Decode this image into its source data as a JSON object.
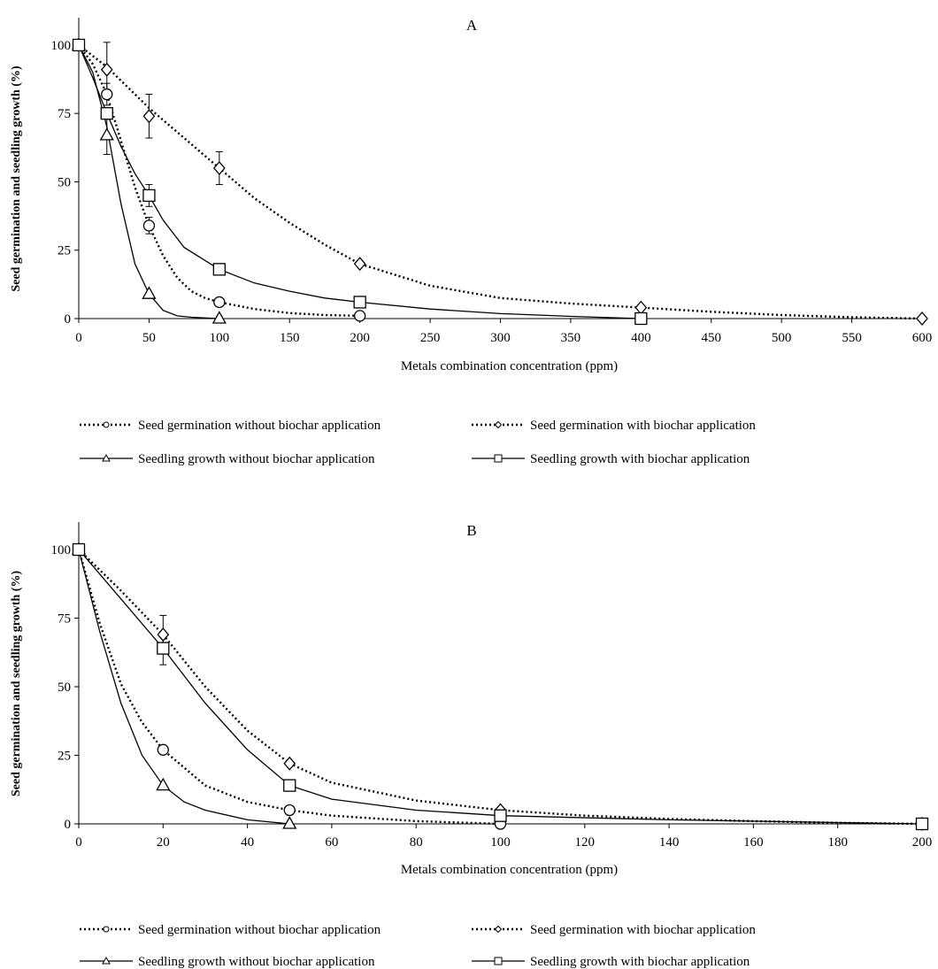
{
  "chart_data": [
    {
      "type": "line",
      "title": "A",
      "xlabel": "Metals combination concentration (ppm)",
      "ylabel": "Seed germination and seedling growth (%)",
      "xlim": [
        0,
        600
      ],
      "ylim": [
        0,
        110
      ],
      "xticks": [
        0,
        50,
        100,
        150,
        200,
        250,
        300,
        350,
        400,
        450,
        500,
        550,
        600
      ],
      "yticks": [
        0,
        25,
        50,
        75,
        100
      ],
      "grid": false,
      "legend_position": "below",
      "series": [
        {
          "name": "Seed germination without biochar application",
          "marker": "circle",
          "line": "dotted",
          "x": [
            0,
            20,
            50,
            100,
            200
          ],
          "y": [
            100,
            82,
            34,
            6,
            1
          ],
          "err": [
            0,
            4,
            3,
            0,
            0
          ],
          "curve_x": [
            0,
            10,
            20,
            30,
            40,
            50,
            60,
            70,
            80,
            90,
            100,
            125,
            150,
            175,
            200
          ],
          "curve_y": [
            100,
            93,
            82,
            65,
            48,
            34,
            23,
            15,
            10,
            7.5,
            6,
            3.5,
            2,
            1.3,
            1
          ]
        },
        {
          "name": "Seed germination with biochar application",
          "marker": "diamond",
          "line": "dotted",
          "x": [
            0,
            20,
            50,
            100,
            200,
            400,
            600
          ],
          "y": [
            100,
            91,
            74,
            55,
            20,
            4,
            0
          ],
          "err": [
            0,
            10,
            8,
            6,
            0,
            0,
            0
          ],
          "curve_x": [
            0,
            20,
            50,
            75,
            100,
            125,
            150,
            175,
            200,
            250,
            300,
            350,
            400,
            450,
            500,
            550,
            600
          ],
          "curve_y": [
            100,
            92,
            77,
            66,
            55,
            44,
            35,
            27,
            20,
            12,
            7.5,
            5.5,
            4,
            2.5,
            1.3,
            0.5,
            0
          ]
        },
        {
          "name": "Seedling growth without biochar application",
          "marker": "triangle",
          "line": "solid",
          "x": [
            0,
            20,
            50,
            100
          ],
          "y": [
            100,
            67,
            9,
            0
          ],
          "err": [
            0,
            7,
            0,
            0
          ],
          "curve_x": [
            0,
            10,
            20,
            30,
            40,
            50,
            60,
            70,
            80,
            100
          ],
          "curve_y": [
            100,
            90,
            70,
            42,
            20,
            9,
            3,
            1,
            0.5,
            0
          ]
        },
        {
          "name": "Seedling growth with biochar application",
          "marker": "square",
          "line": "solid",
          "x": [
            0,
            20,
            50,
            100,
            200,
            400
          ],
          "y": [
            100,
            75,
            45,
            18,
            6,
            0
          ],
          "err": [
            0,
            0,
            4,
            0,
            0,
            0
          ],
          "curve_x": [
            0,
            10,
            20,
            30,
            40,
            50,
            60,
            75,
            100,
            125,
            150,
            175,
            200,
            250,
            300,
            350,
            400
          ],
          "curve_y": [
            100,
            88,
            75,
            63,
            53,
            45,
            36,
            26,
            18,
            13,
            10,
            7.5,
            6,
            3.5,
            1.8,
            0.8,
            0
          ]
        }
      ]
    },
    {
      "type": "line",
      "title": "B",
      "xlabel": "Metals combination concentration (ppm)",
      "ylabel": "Seed germination and seedling growth (%)",
      "xlim": [
        0,
        200
      ],
      "ylim": [
        0,
        110
      ],
      "xticks": [
        0,
        20,
        40,
        60,
        80,
        100,
        120,
        140,
        160,
        180,
        200
      ],
      "yticks": [
        0,
        25,
        50,
        75,
        100
      ],
      "grid": false,
      "legend_position": "below",
      "series": [
        {
          "name": "Seed germination without biochar application",
          "marker": "circle",
          "line": "dotted",
          "x": [
            0,
            20,
            50,
            100
          ],
          "y": [
            100,
            27,
            5,
            0
          ],
          "err": [
            0,
            0,
            0,
            0
          ],
          "curve_x": [
            0,
            5,
            10,
            15,
            20,
            30,
            40,
            50,
            60,
            80,
            100
          ],
          "curve_y": [
            100,
            73,
            51,
            37,
            27,
            14,
            8,
            5,
            3,
            1,
            0
          ]
        },
        {
          "name": "Seed germination with biochar application",
          "marker": "diamond",
          "line": "dotted",
          "x": [
            0,
            20,
            50,
            100,
            200
          ],
          "y": [
            100,
            69,
            22,
            5,
            0
          ],
          "err": [
            0,
            7,
            0,
            0,
            0
          ],
          "curve_x": [
            0,
            10,
            20,
            30,
            40,
            50,
            60,
            80,
            100,
            120,
            140,
            160,
            180,
            200
          ],
          "curve_y": [
            100,
            85,
            69,
            50,
            34,
            22,
            15,
            8.5,
            5,
            3,
            1.8,
            1,
            0.4,
            0
          ]
        },
        {
          "name": "Seedling growth without biochar application",
          "marker": "triangle",
          "line": "solid",
          "x": [
            0,
            20,
            50
          ],
          "y": [
            100,
            14,
            0
          ],
          "err": [
            0,
            0,
            0
          ],
          "curve_x": [
            0,
            5,
            10,
            15,
            20,
            25,
            30,
            40,
            50
          ],
          "curve_y": [
            100,
            70,
            44,
            25,
            14,
            8,
            5,
            1.5,
            0
          ]
        },
        {
          "name": "Seedling growth with biochar application",
          "marker": "square",
          "line": "solid",
          "x": [
            0,
            20,
            50,
            100,
            200
          ],
          "y": [
            100,
            64,
            14,
            3,
            0
          ],
          "err": [
            0,
            6,
            0,
            0,
            0
          ],
          "curve_x": [
            0,
            10,
            20,
            30,
            40,
            50,
            60,
            80,
            100,
            140,
            200
          ],
          "curve_y": [
            100,
            82,
            64,
            44,
            27,
            14,
            9,
            5,
            3,
            1.5,
            0
          ]
        }
      ]
    }
  ]
}
